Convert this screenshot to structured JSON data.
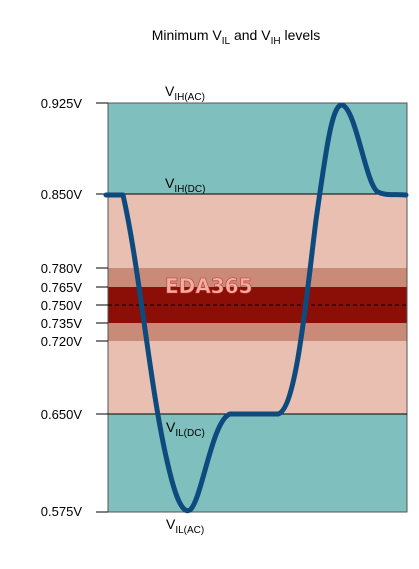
{
  "title": {
    "prefix": "Minimum V",
    "sub1": "IL",
    "mid": " and V",
    "sub2": "IH",
    "suffix": " levels"
  },
  "axis": {
    "ticks": [
      "0.925V",
      "0.850V",
      "0.780V",
      "0.765V",
      "0.750V",
      "0.735V",
      "0.720V",
      "0.650V",
      "0.575V"
    ]
  },
  "levels": {
    "vih_ac": {
      "main": "V",
      "sub": "IH(AC)"
    },
    "vih_dc": {
      "main": "V",
      "sub": "IH(DC)"
    },
    "vil_dc": {
      "main": "V",
      "sub": "IL(DC)"
    },
    "vil_ac": {
      "main": "V",
      "sub": "IL(AC)"
    }
  },
  "watermark": "EDA365",
  "colors": {
    "teal": "#7fbfbd",
    "pink": "#e8bfb0",
    "rose": "#c98a78",
    "dark_red": "#8b0e07",
    "waveform": "#0d4a7d"
  }
}
